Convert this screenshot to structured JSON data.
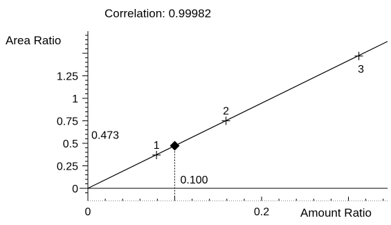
{
  "correlation_label": "Correlation: 0.99982",
  "chart_data": {
    "type": "scatter",
    "title": "Correlation: 0.99982",
    "ylabel": "Area Ratio",
    "xlabel": "Amount Ratio",
    "xlim": [
      0,
      0.34
    ],
    "ylim": [
      -0.1,
      1.75
    ],
    "x_ticks": [
      {
        "value": 0,
        "label": "0"
      },
      {
        "value": 0.2,
        "label": "0.2"
      }
    ],
    "y_ticks": [
      {
        "value": 0,
        "label": "0"
      },
      {
        "value": 0.25,
        "label": "0.25"
      },
      {
        "value": 0.5,
        "label": "0.5"
      },
      {
        "value": 0.75,
        "label": "0.75"
      },
      {
        "value": 1,
        "label": "1"
      },
      {
        "value": 1.25,
        "label": "1.25"
      }
    ],
    "calibration_points": [
      {
        "label": "1",
        "x": 0.079,
        "y": 0.37
      },
      {
        "label": "2",
        "x": 0.159,
        "y": 0.75
      },
      {
        "label": "3",
        "x": 0.312,
        "y": 1.47
      }
    ],
    "fit_line": {
      "slope": 4.73,
      "intercept": 0.0
    },
    "sample_point": {
      "x": 0.1,
      "y": 0.473,
      "x_label": "0.100",
      "y_label": "0.473"
    },
    "grid": false
  }
}
